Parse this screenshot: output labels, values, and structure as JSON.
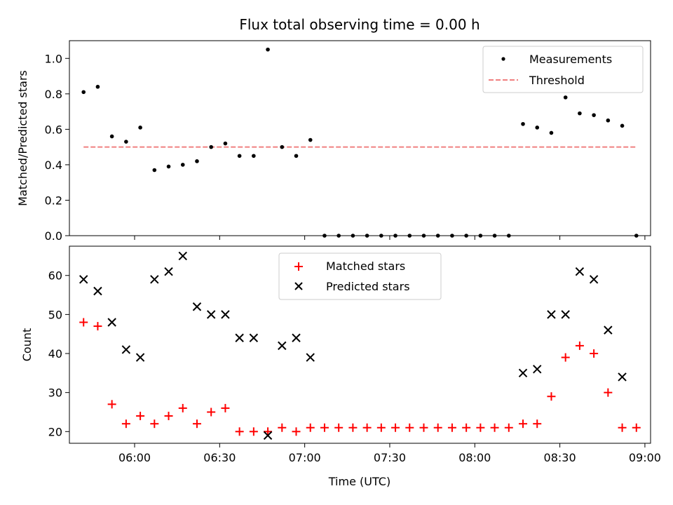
{
  "chart_data": [
    {
      "type": "scatter",
      "title": "Flux total observing time = 0.00 h",
      "xlabel": "",
      "ylabel": "Matched/Predicted stars",
      "ylim": [
        0,
        1.1
      ],
      "yticks": [
        "0.0",
        "0.2",
        "0.4",
        "0.6",
        "0.8",
        "1.0"
      ],
      "legend": {
        "placement": "top-right",
        "entries": [
          "Measurements",
          "Threshold"
        ]
      },
      "threshold": {
        "name": "Threshold",
        "value": 0.5,
        "color": "#f08080",
        "x_start": "05:42",
        "x_end": "08:57"
      },
      "series": [
        {
          "name": "Measurements",
          "color": "#000000",
          "marker": "dot",
          "x": [
            "05:42",
            "05:47",
            "05:52",
            "05:57",
            "06:02",
            "06:07",
            "06:12",
            "06:17",
            "06:22",
            "06:27",
            "06:32",
            "06:37",
            "06:42",
            "06:47",
            "06:52",
            "06:57",
            "07:02",
            "07:07",
            "07:12",
            "07:17",
            "07:22",
            "07:27",
            "07:32",
            "07:37",
            "07:42",
            "07:47",
            "07:52",
            "07:57",
            "08:02",
            "08:07",
            "08:12",
            "08:17",
            "08:22",
            "08:27",
            "08:32",
            "08:37",
            "08:42",
            "08:47",
            "08:52",
            "08:57"
          ],
          "values": [
            0.81,
            0.84,
            0.56,
            0.53,
            0.61,
            0.37,
            0.39,
            0.4,
            0.42,
            0.5,
            0.52,
            0.45,
            0.45,
            1.05,
            0.5,
            0.45,
            0.54,
            0.0,
            0.0,
            0.0,
            0.0,
            0.0,
            0.0,
            0.0,
            0.0,
            0.0,
            0.0,
            0.0,
            0.0,
            0.0,
            0.0,
            0.63,
            0.61,
            0.58,
            0.78,
            0.69,
            0.68,
            0.65,
            0.62,
            0.0
          ]
        }
      ]
    },
    {
      "type": "scatter",
      "title": "",
      "xlabel": "Time (UTC)",
      "ylabel": "Count",
      "ylim": [
        17,
        67.5
      ],
      "yticks": [
        "20",
        "30",
        "40",
        "50",
        "60"
      ],
      "xticks": [
        "06:00",
        "06:30",
        "07:00",
        "07:30",
        "08:00",
        "08:30",
        "09:00"
      ],
      "legend": {
        "placement": "upper-center",
        "entries": [
          "Matched stars",
          "Predicted stars"
        ]
      },
      "series": [
        {
          "name": "Matched stars",
          "color": "#ff0000",
          "marker": "plus",
          "x": [
            "05:42",
            "05:47",
            "05:52",
            "05:57",
            "06:02",
            "06:07",
            "06:12",
            "06:17",
            "06:22",
            "06:27",
            "06:32",
            "06:37",
            "06:42",
            "06:47",
            "06:52",
            "06:57",
            "07:02",
            "07:07",
            "07:12",
            "07:17",
            "07:22",
            "07:27",
            "07:32",
            "07:37",
            "07:42",
            "07:47",
            "07:52",
            "07:57",
            "08:02",
            "08:07",
            "08:12",
            "08:17",
            "08:22",
            "08:27",
            "08:32",
            "08:37",
            "08:42",
            "08:47",
            "08:52",
            "08:57"
          ],
          "values": [
            48,
            47,
            27,
            22,
            24,
            22,
            24,
            26,
            22,
            25,
            26,
            20,
            20,
            20,
            21,
            20,
            21,
            21,
            21,
            21,
            21,
            21,
            21,
            21,
            21,
            21,
            21,
            21,
            21,
            21,
            21,
            22,
            22,
            29,
            39,
            42,
            40,
            30,
            21,
            21
          ]
        },
        {
          "name": "Predicted stars",
          "color": "#000000",
          "marker": "x",
          "x": [
            "05:42",
            "05:47",
            "05:52",
            "05:57",
            "06:02",
            "06:07",
            "06:12",
            "06:17",
            "06:22",
            "06:27",
            "06:32",
            "06:37",
            "06:42",
            "06:47",
            "06:52",
            "06:57",
            "07:02",
            "08:17",
            "08:22",
            "08:27",
            "08:32",
            "08:37",
            "08:42",
            "08:47",
            "08:52"
          ],
          "values": [
            59,
            56,
            48,
            41,
            39,
            59,
            61,
            65,
            52,
            50,
            50,
            44,
            44,
            19,
            42,
            44,
            39,
            35,
            36,
            50,
            50,
            61,
            59,
            46,
            34
          ]
        }
      ]
    }
  ]
}
